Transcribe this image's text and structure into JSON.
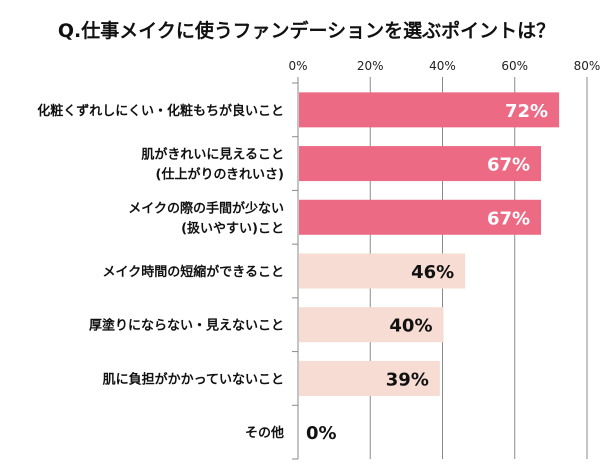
{
  "chart_data": {
    "type": "bar",
    "orientation": "horizontal",
    "title": "Q.仕事メイクに使うファンデーションを選ぶポイントは？",
    "categories": [
      [
        "化粧くずれしにくい・化粧もちが良いこと"
      ],
      [
        "肌がきれいに見えること",
        "(仕上がりのきれいさ)"
      ],
      [
        "メイクの際の手間が少ない",
        "(扱いやすい)こと"
      ],
      [
        "メイク時間の短縮ができること"
      ],
      [
        "厚塗りにならない・見えないこと"
      ],
      [
        "肌に負担がかかっていないこと"
      ],
      [
        "その他"
      ]
    ],
    "values": [
      72,
      67,
      67,
      46,
      40,
      39,
      0
    ],
    "data_labels": [
      "72%",
      "67%",
      "67%",
      "46%",
      "40%",
      "39%",
      "0%"
    ],
    "highlight": [
      true,
      true,
      true,
      false,
      false,
      false,
      false
    ],
    "xlim": [
      0,
      80
    ],
    "xticks": [
      "0%",
      "20%",
      "40%",
      "60%",
      "80%"
    ],
    "grid": true,
    "colors": {
      "highlight": "#ED6A85",
      "normal": "#F6DCD3",
      "highlight_label": "#FFFFFF",
      "normal_label": "#111111"
    }
  }
}
